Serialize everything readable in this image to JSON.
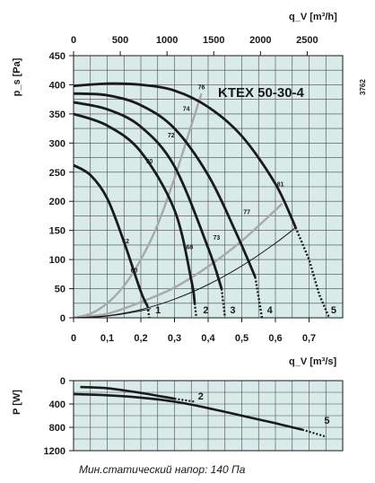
{
  "chart_data": [
    {
      "type": "line",
      "title": "KTEX 50-30-4",
      "code": "3762",
      "xlabel": "q_V [m³/s]",
      "x_top_label": "q_V [m³/h]",
      "ylabel": "p_s [Pa]",
      "xlim": [
        0,
        0.8
      ],
      "ylim": [
        0,
        450
      ],
      "x_ticks": [
        "0",
        "0,1",
        "0,2",
        "0,3",
        "0,4",
        "0,5",
        "0,6",
        "0,7"
      ],
      "x_tick_values": [
        0,
        0.1,
        0.2,
        0.3,
        0.4,
        0.5,
        0.6,
        0.7
      ],
      "x_top_ticks": [
        "0",
        "500",
        "1000",
        "1500",
        "2000",
        "2500"
      ],
      "x_top_tick_values": [
        0,
        500,
        1000,
        1500,
        2000,
        2500
      ],
      "y_ticks": [
        "0",
        "50",
        "100",
        "150",
        "200",
        "250",
        "300",
        "350",
        "400",
        "450"
      ],
      "y_tick_values": [
        0,
        50,
        100,
        150,
        200,
        250,
        300,
        350,
        400,
        450
      ],
      "grid": true,
      "background": "#d8ebe8",
      "colors": {
        "fan": "#1a1a1a",
        "efficiency": "#a8a8a8"
      },
      "fan_curves": [
        {
          "label": "5",
          "x": [
            0,
            0.1,
            0.2,
            0.3,
            0.4,
            0.5,
            0.6,
            0.66
          ],
          "y": [
            398,
            402,
            400,
            390,
            362,
            312,
            230,
            155
          ],
          "dotted": [
            [
              0.66,
              155
            ],
            [
              0.7,
              100
            ],
            [
              0.73,
              40
            ],
            [
              0.76,
              0
            ]
          ],
          "label_at": [
            0.765,
            8
          ]
        },
        {
          "label": "4",
          "x": [
            0,
            0.1,
            0.2,
            0.3,
            0.4,
            0.48,
            0.54
          ],
          "y": [
            385,
            382,
            365,
            325,
            245,
            150,
            70
          ],
          "dotted": [
            [
              0.54,
              70
            ],
            [
              0.55,
              35
            ],
            [
              0.56,
              0
            ]
          ],
          "label_at": [
            0.575,
            8
          ]
        },
        {
          "label": "3",
          "x": [
            0,
            0.1,
            0.2,
            0.3,
            0.4,
            0.44
          ],
          "y": [
            370,
            358,
            328,
            260,
            120,
            50
          ],
          "dotted": [
            [
              0.44,
              50
            ],
            [
              0.45,
              0
            ]
          ],
          "label_at": [
            0.465,
            8
          ]
        },
        {
          "label": "2",
          "x": [
            0,
            0.1,
            0.2,
            0.3,
            0.35,
            0.36
          ],
          "y": [
            350,
            330,
            285,
            185,
            65,
            25
          ],
          "dotted": [
            [
              0.36,
              25
            ],
            [
              0.365,
              0
            ]
          ],
          "label_at": [
            0.385,
            8
          ]
        },
        {
          "label": "1",
          "x": [
            0,
            0.05,
            0.1,
            0.15,
            0.2,
            0.22
          ],
          "y": [
            262,
            245,
            205,
            130,
            45,
            20
          ],
          "dotted": [
            [
              0.22,
              20
            ],
            [
              0.225,
              0
            ]
          ],
          "label_at": [
            0.243,
            8
          ]
        }
      ],
      "system_curves": [
        {
          "x": [
            0,
            0.1,
            0.2,
            0.3,
            0.4,
            0.5,
            0.6,
            0.66
          ],
          "y": [
            0,
            3.6,
            14,
            32,
            57,
            89,
            128,
            155
          ]
        },
        {
          "x": [
            0,
            0.1,
            0.2,
            0.23
          ],
          "y": [
            0,
            3,
            12,
            16
          ]
        }
      ],
      "efficiency_lines": [
        {
          "x": [
            0,
            0.1,
            0.2,
            0.3,
            0.4,
            0.5,
            0.6,
            0.62
          ],
          "y": [
            0,
            7,
            27,
            52,
            88,
            132,
            185,
            196
          ]
        },
        {
          "x": [
            0,
            0.05,
            0.1,
            0.15,
            0.2,
            0.25,
            0.3,
            0.35,
            0.38
          ],
          "y": [
            0,
            7,
            25,
            55,
            100,
            160,
            240,
            330,
            385
          ]
        }
      ],
      "annotations": [
        {
          "text": "76",
          "x": 0.38,
          "y": 392
        },
        {
          "text": "74",
          "x": 0.335,
          "y": 355
        },
        {
          "text": "72",
          "x": 0.29,
          "y": 310
        },
        {
          "text": "70",
          "x": 0.225,
          "y": 265
        },
        {
          "text": "62",
          "x": 0.155,
          "y": 128
        },
        {
          "text": "60",
          "x": 0.18,
          "y": 78
        },
        {
          "text": "68",
          "x": 0.345,
          "y": 118
        },
        {
          "text": "73",
          "x": 0.425,
          "y": 134
        },
        {
          "text": "77",
          "x": 0.515,
          "y": 178
        },
        {
          "text": "81",
          "x": 0.615,
          "y": 226
        }
      ]
    },
    {
      "type": "line",
      "ylabel": "P [W]",
      "ylim": [
        0,
        1200
      ],
      "y_inverted": true,
      "y_ticks": [
        "0",
        "400",
        "800",
        "1200"
      ],
      "y_tick_values": [
        0,
        400,
        800,
        1200
      ],
      "grid": true,
      "series": [
        {
          "name": "2",
          "x": [
            0.02,
            0.1,
            0.2,
            0.3
          ],
          "y": [
            110,
            130,
            210,
            310
          ],
          "dotted": [
            [
              0.3,
              310
            ],
            [
              0.36,
              360
            ]
          ],
          "label_at": [
            0.37,
            320
          ]
        },
        {
          "name": "5",
          "x": [
            0,
            0.1,
            0.2,
            0.3,
            0.4,
            0.5,
            0.6,
            0.68
          ],
          "y": [
            230,
            250,
            290,
            360,
            470,
            600,
            730,
            840
          ],
          "dotted": [
            [
              0.68,
              840
            ],
            [
              0.75,
              960
            ]
          ],
          "label_at": [
            0.745,
            740
          ]
        }
      ]
    }
  ],
  "footnote": "Мин.статический напор: 140 Па"
}
